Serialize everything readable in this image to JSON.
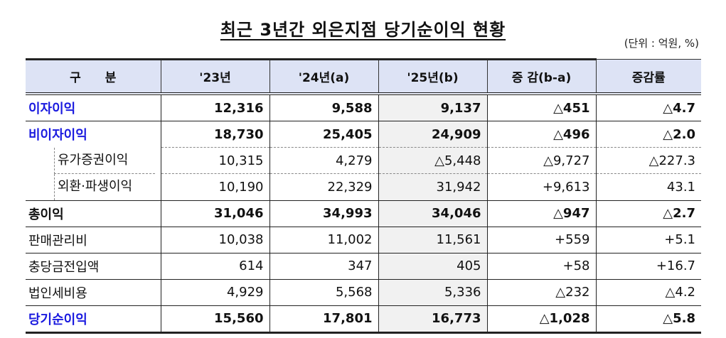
{
  "title": "최근 3년간 외은지점 당기순이익 현황",
  "unit": "(단위 : 억원, %)",
  "table": {
    "headers": [
      "구　　분",
      "'23년",
      "'24년(a)",
      "'25년(b)",
      "증 감(b-a)",
      "증감률"
    ],
    "rows": [
      {
        "label": "이자이익",
        "v23": "12,316",
        "v24": "9,588",
        "v25": "9,137",
        "diff": "△451",
        "rate": "△4.7"
      },
      {
        "label": "비이자이익",
        "v23": "18,730",
        "v24": "25,405",
        "v25": "24,909",
        "diff": "△496",
        "rate": "△2.0"
      },
      {
        "label": "유가증권이익",
        "v23": "10,315",
        "v24": "4,279",
        "v25": "△5,448",
        "diff": "△9,727",
        "rate": "△227.3"
      },
      {
        "label": "외환·파생이익",
        "v23": "10,190",
        "v24": "22,329",
        "v25": "31,942",
        "diff": "+9,613",
        "rate": "43.1"
      },
      {
        "label": "총이익",
        "v23": "31,046",
        "v24": "34,993",
        "v25": "34,046",
        "diff": "△947",
        "rate": "△2.7"
      },
      {
        "label": "판매관리비",
        "v23": "10,038",
        "v24": "11,002",
        "v25": "11,561",
        "diff": "+559",
        "rate": "+5.1"
      },
      {
        "label": "충당금전입액",
        "v23": "614",
        "v24": "347",
        "v25": "405",
        "diff": "+58",
        "rate": "+16.7"
      },
      {
        "label": "법인세비용",
        "v23": "4,929",
        "v24": "5,568",
        "v25": "5,336",
        "diff": "△232",
        "rate": "△4.2"
      },
      {
        "label": "당기순이익",
        "v23": "15,560",
        "v24": "17,801",
        "v25": "16,773",
        "diff": "△1,028",
        "rate": "△5.8"
      }
    ]
  },
  "colors": {
    "header_bg": "#dde3f5",
    "highlight_label": "#1a1adf",
    "shaded_column": "#f1f1f1"
  }
}
